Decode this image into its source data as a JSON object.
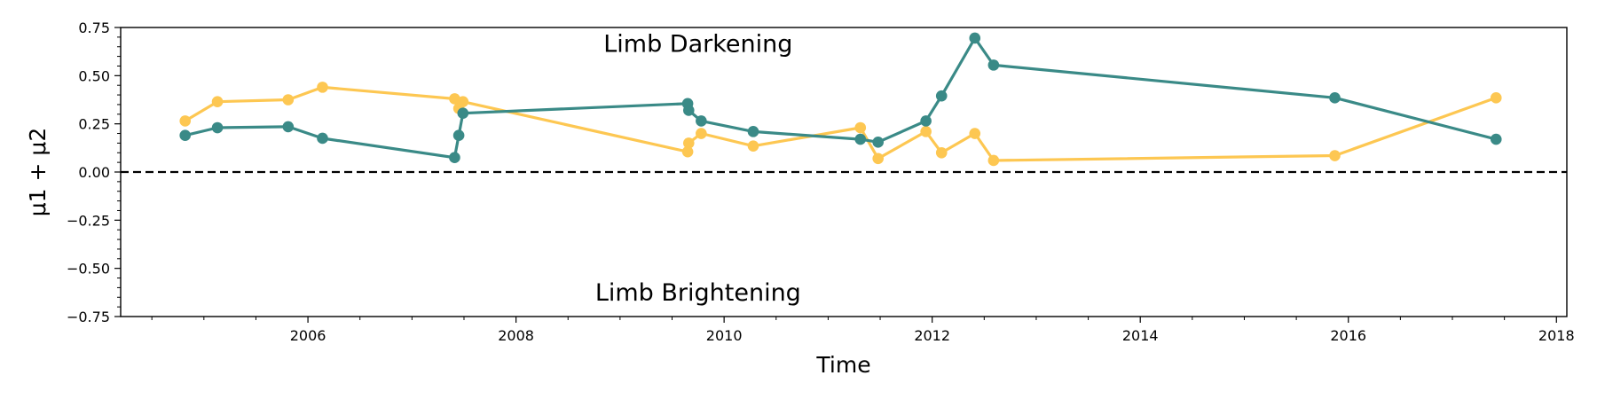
{
  "chart_data": {
    "type": "line",
    "xlabel": "Time",
    "ylabel": "μ1 + μ2",
    "xlim": [
      2004.2,
      2018.1
    ],
    "ylim": [
      -0.75,
      0.75
    ],
    "x_ticks": [
      2006,
      2008,
      2010,
      2012,
      2014,
      2016,
      2018
    ],
    "x_tick_labels": [
      "2006",
      "2008",
      "2010",
      "2012",
      "2014",
      "2016",
      "2018"
    ],
    "y_ticks": [
      0.75,
      0.5,
      0.25,
      0.0,
      -0.25,
      -0.5,
      -0.75
    ],
    "y_tick_labels": [
      "0.75",
      "0.50",
      "0.25",
      "0.00",
      "−0.25",
      "−0.50",
      "−0.75"
    ],
    "reference_line": {
      "y": 0.0,
      "style": "dashed",
      "color": "#000000"
    },
    "annotations": [
      {
        "text": "Limb Darkening",
        "x": 2009.75,
        "y": 0.665
      },
      {
        "text": "Limb Brightening",
        "x": 2009.75,
        "y": -0.625
      }
    ],
    "grid": false,
    "legend": "none",
    "series": [
      {
        "color": "#3a8a87",
        "x": [
          2004.82,
          2005.13,
          2005.81,
          2006.14,
          2007.41,
          2007.45,
          2007.49,
          2009.65,
          2009.66,
          2009.78,
          2010.28,
          2011.31,
          2011.48,
          2011.94,
          2012.09,
          2012.41,
          2012.59,
          2015.87,
          2017.42
        ],
        "y": [
          0.19,
          0.23,
          0.235,
          0.175,
          0.075,
          0.19,
          0.305,
          0.355,
          0.32,
          0.265,
          0.21,
          0.17,
          0.155,
          0.265,
          0.395,
          0.695,
          0.555,
          0.385,
          0.17
        ]
      },
      {
        "color": "#fdc752",
        "x": [
          2004.82,
          2005.13,
          2005.81,
          2006.14,
          2007.41,
          2007.45,
          2007.49,
          2009.65,
          2009.66,
          2009.78,
          2010.28,
          2011.31,
          2011.48,
          2011.94,
          2012.09,
          2012.41,
          2012.59,
          2015.87,
          2017.42
        ],
        "y": [
          0.265,
          0.365,
          0.375,
          0.44,
          0.38,
          0.33,
          0.365,
          0.105,
          0.15,
          0.2,
          0.135,
          0.23,
          0.07,
          0.21,
          0.1,
          0.2,
          0.06,
          0.085,
          0.385
        ]
      }
    ]
  }
}
